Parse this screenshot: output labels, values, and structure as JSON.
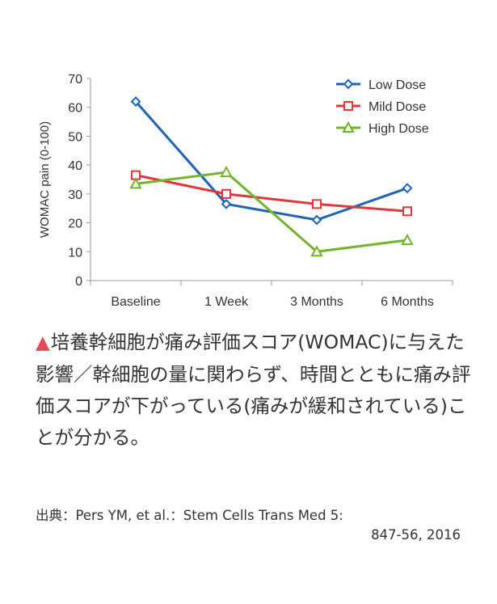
{
  "chart_data": {
    "type": "line",
    "categories": [
      "Baseline",
      "1 Week",
      "3 Months",
      "6 Months"
    ],
    "ylabel": "WOMAC pain (0-100)",
    "ylim": [
      0,
      70
    ],
    "yticks": [
      0,
      10,
      20,
      30,
      40,
      50,
      60,
      70
    ],
    "legend_position": "top-right",
    "grid": false,
    "series": [
      {
        "name": "Low Dose",
        "values": [
          62,
          26.5,
          21,
          32
        ],
        "color": "#1f63b8",
        "marker": "diamond"
      },
      {
        "name": "Mild Dose",
        "values": [
          36.5,
          30,
          26.5,
          24
        ],
        "color": "#e0373a",
        "marker": "square"
      },
      {
        "name": "High Dose",
        "values": [
          33.5,
          37.5,
          10,
          14
        ],
        "color": "#74b32c",
        "marker": "triangle"
      }
    ]
  },
  "caption": {
    "marker": "▲",
    "text": "培養幹細胞が痛み評価スコア(WOMAC)に与えた影響／幹細胞の量に関わらず、時間とともに痛み評価スコアが下がっている(痛みが緩和されている)ことが分かる。"
  },
  "source": {
    "line1": "出典：Pers YM, et al.：Stem Cells Trans Med 5:",
    "line2": "847-56, 2016"
  }
}
